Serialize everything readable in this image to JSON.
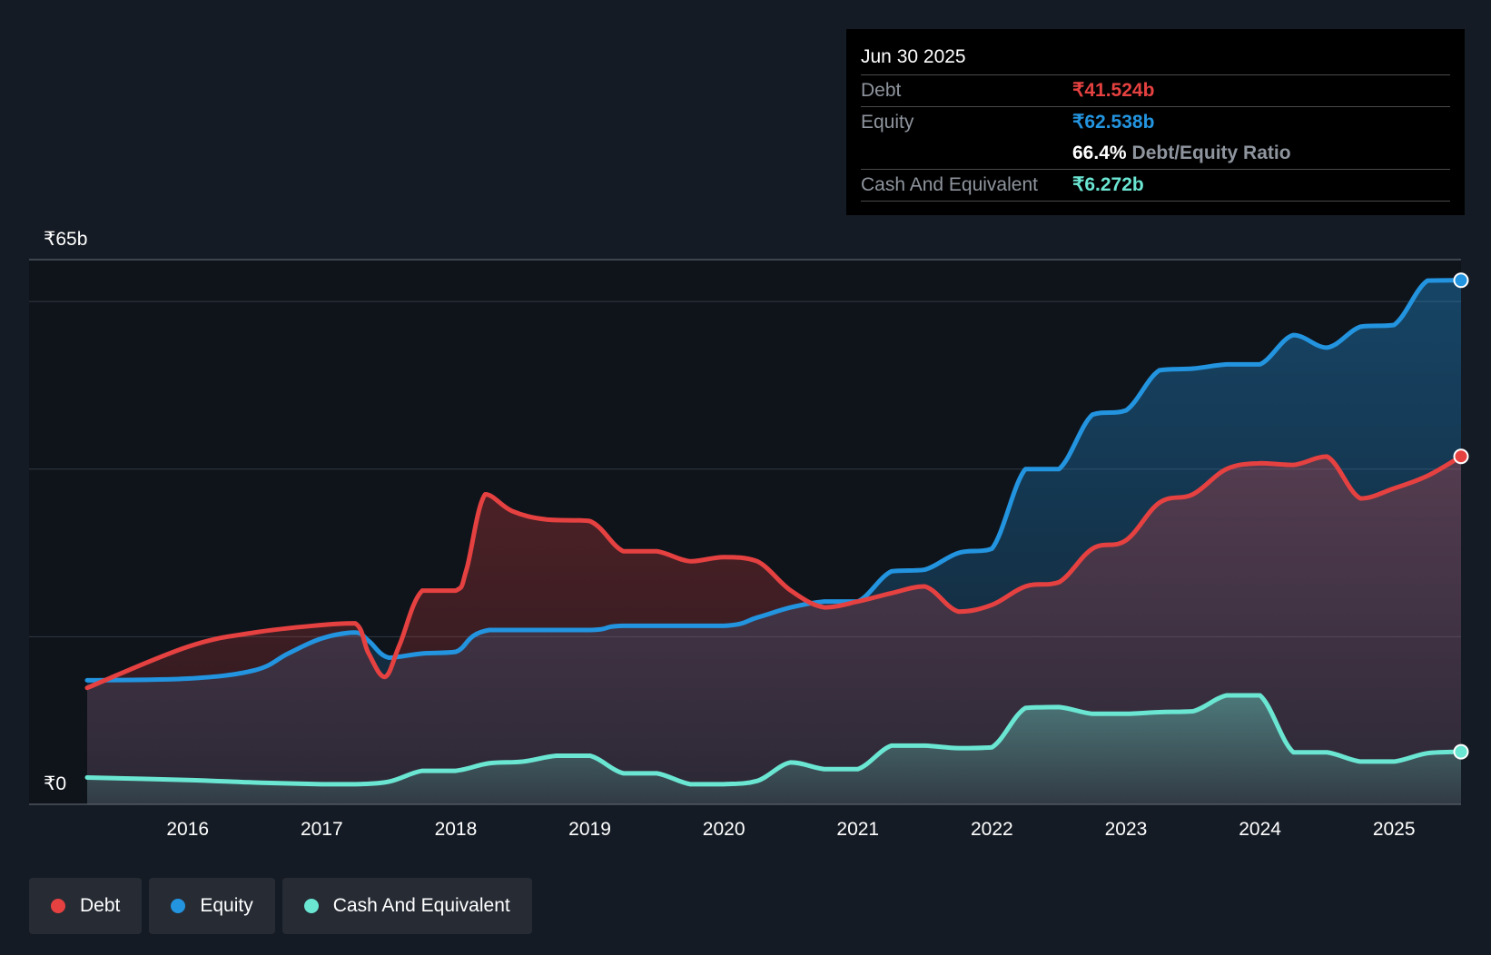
{
  "colors": {
    "background": "#151b24",
    "debt": "#e64141",
    "equity": "#2394df",
    "cash": "#6ae6d2",
    "grid": "#323842",
    "label_gray": "#8f959e"
  },
  "tooltip": {
    "date": "Jun 30 2025",
    "debt_label": "Debt",
    "debt_value": "₹41.524b",
    "equity_label": "Equity",
    "equity_value": "₹62.538b",
    "ratio_value": "66.4%",
    "ratio_label": "Debt/Equity Ratio",
    "cash_label": "Cash And Equivalent",
    "cash_value": "₹6.272b"
  },
  "legend": {
    "items": [
      {
        "label": "Debt",
        "color_key": "debt"
      },
      {
        "label": "Equity",
        "color_key": "equity"
      },
      {
        "label": "Cash And Equivalent",
        "color_key": "cash"
      }
    ]
  },
  "chart_data": {
    "type": "area",
    "title": "",
    "xlabel": "",
    "ylabel": "",
    "y_axis_labels": [
      "₹65b",
      "₹0"
    ],
    "ylim": [
      0,
      65
    ],
    "xlim": [
      2015.25,
      2025.5
    ],
    "x_ticks": [
      2016,
      2017,
      2018,
      2019,
      2020,
      2021,
      2022,
      2023,
      2024,
      2025
    ],
    "x_tick_labels": [
      "2016",
      "2017",
      "2018",
      "2019",
      "2020",
      "2021",
      "2022",
      "2023",
      "2024",
      "2025"
    ],
    "grid": true,
    "legend_position": "bottom-left",
    "highlight_date": "Jun 30 2025",
    "series": [
      {
        "name": "Debt",
        "color_key": "debt",
        "points": [
          [
            2015.25,
            13.9
          ],
          [
            2016.0,
            18.8
          ],
          [
            2016.5,
            20.5
          ],
          [
            2017.0,
            21.4
          ],
          [
            2017.25,
            21.6
          ],
          [
            2017.35,
            18.0
          ],
          [
            2017.47,
            15.2
          ],
          [
            2017.58,
            19.0
          ],
          [
            2017.75,
            25.5
          ],
          [
            2018.0,
            25.5
          ],
          [
            2018.08,
            28.0
          ],
          [
            2018.22,
            37.0
          ],
          [
            2018.42,
            35.0
          ],
          [
            2018.67,
            34.0
          ],
          [
            2019.0,
            33.8
          ],
          [
            2019.25,
            30.2
          ],
          [
            2019.5,
            30.2
          ],
          [
            2019.75,
            29.0
          ],
          [
            2020.0,
            29.5
          ],
          [
            2020.25,
            29.0
          ],
          [
            2020.5,
            25.5
          ],
          [
            2020.75,
            23.5
          ],
          [
            2021.0,
            24.2
          ],
          [
            2021.25,
            25.2
          ],
          [
            2021.5,
            26.0
          ],
          [
            2021.75,
            23.0
          ],
          [
            2022.0,
            23.8
          ],
          [
            2022.25,
            26.0
          ],
          [
            2022.5,
            26.5
          ],
          [
            2022.75,
            30.5
          ],
          [
            2023.0,
            31.5
          ],
          [
            2023.25,
            36.0
          ],
          [
            2023.5,
            37.0
          ],
          [
            2023.75,
            40.0
          ],
          [
            2024.0,
            40.7
          ],
          [
            2024.25,
            40.5
          ],
          [
            2024.5,
            41.5
          ],
          [
            2024.75,
            36.5
          ],
          [
            2025.0,
            37.7
          ],
          [
            2025.25,
            39.2
          ],
          [
            2025.5,
            41.524
          ]
        ]
      },
      {
        "name": "Equity",
        "color_key": "equity",
        "points": [
          [
            2015.25,
            14.8
          ],
          [
            2016.0,
            15.0
          ],
          [
            2016.5,
            16.0
          ],
          [
            2016.75,
            18.0
          ],
          [
            2017.0,
            19.8
          ],
          [
            2017.25,
            20.5
          ],
          [
            2017.35,
            19.5
          ],
          [
            2017.5,
            17.5
          ],
          [
            2017.75,
            18.0
          ],
          [
            2018.0,
            18.2
          ],
          [
            2018.25,
            20.8
          ],
          [
            2019.0,
            20.8
          ],
          [
            2019.25,
            21.3
          ],
          [
            2020.0,
            21.3
          ],
          [
            2020.25,
            22.3
          ],
          [
            2020.5,
            23.5
          ],
          [
            2020.75,
            24.2
          ],
          [
            2021.0,
            24.2
          ],
          [
            2021.25,
            27.8
          ],
          [
            2021.5,
            28.0
          ],
          [
            2021.75,
            30.0
          ],
          [
            2022.0,
            30.5
          ],
          [
            2022.25,
            40.0
          ],
          [
            2022.5,
            40.0
          ],
          [
            2022.75,
            46.5
          ],
          [
            2023.0,
            47.0
          ],
          [
            2023.25,
            51.8
          ],
          [
            2023.5,
            52.0
          ],
          [
            2023.75,
            52.5
          ],
          [
            2024.0,
            52.5
          ],
          [
            2024.25,
            56.0
          ],
          [
            2024.5,
            54.5
          ],
          [
            2024.75,
            57.0
          ],
          [
            2025.0,
            57.2
          ],
          [
            2025.25,
            62.5
          ],
          [
            2025.5,
            62.538
          ]
        ]
      },
      {
        "name": "Cash And Equivalent",
        "color_key": "cash",
        "points": [
          [
            2015.25,
            3.2
          ],
          [
            2016.0,
            2.9
          ],
          [
            2016.5,
            2.6
          ],
          [
            2017.0,
            2.4
          ],
          [
            2017.25,
            2.4
          ],
          [
            2017.5,
            2.7
          ],
          [
            2017.75,
            4.0
          ],
          [
            2018.0,
            4.0
          ],
          [
            2018.25,
            4.9
          ],
          [
            2018.5,
            5.1
          ],
          [
            2018.75,
            5.8
          ],
          [
            2019.0,
            5.8
          ],
          [
            2019.25,
            3.7
          ],
          [
            2019.5,
            3.7
          ],
          [
            2019.75,
            2.4
          ],
          [
            2020.0,
            2.4
          ],
          [
            2020.25,
            2.8
          ],
          [
            2020.5,
            5.0
          ],
          [
            2020.75,
            4.2
          ],
          [
            2021.0,
            4.2
          ],
          [
            2021.25,
            7.0
          ],
          [
            2021.5,
            7.0
          ],
          [
            2021.75,
            6.7
          ],
          [
            2022.0,
            6.8
          ],
          [
            2022.25,
            11.5
          ],
          [
            2022.5,
            11.6
          ],
          [
            2022.75,
            10.8
          ],
          [
            2023.0,
            10.8
          ],
          [
            2023.25,
            11.0
          ],
          [
            2023.5,
            11.1
          ],
          [
            2023.75,
            13.0
          ],
          [
            2024.0,
            13.0
          ],
          [
            2024.25,
            6.2
          ],
          [
            2024.5,
            6.2
          ],
          [
            2024.75,
            5.1
          ],
          [
            2025.0,
            5.1
          ],
          [
            2025.25,
            6.1
          ],
          [
            2025.5,
            6.272
          ]
        ]
      }
    ]
  }
}
